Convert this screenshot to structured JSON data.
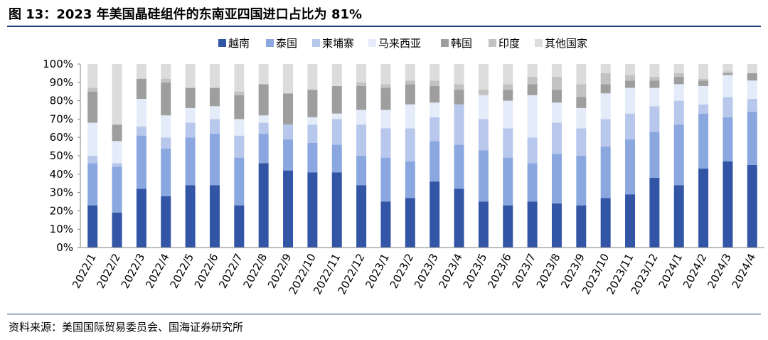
{
  "header": {
    "title": "图 13：2023 年美国晶硅组件的东南亚四国进口占比为 81%"
  },
  "footer": {
    "source": "资料来源：美国国际贸易委员会、国海证券研究所"
  },
  "colors": {
    "rule": "#1f3d7a"
  },
  "chart_data": {
    "type": "bar",
    "stacked": true,
    "title": "",
    "xlabel": "",
    "ylabel": "",
    "ylim": [
      0,
      100
    ],
    "yticks": [
      "0%",
      "10%",
      "20%",
      "30%",
      "40%",
      "50%",
      "60%",
      "70%",
      "80%",
      "90%",
      "100%"
    ],
    "grid": false,
    "legend_position": "top",
    "categories": [
      "2022/1",
      "2022/2",
      "2022/3",
      "2022/4",
      "2022/5",
      "2022/6",
      "2022/7",
      "2022/8",
      "2022/9",
      "2022/10",
      "2022/11",
      "2022/12",
      "2023/1",
      "2023/2",
      "2023/3",
      "2023/4",
      "2023/5",
      "2023/6",
      "2023/7",
      "2023/8",
      "2023/9",
      "2023/10",
      "2023/11",
      "2023/12",
      "2024/1",
      "2024/2",
      "2024/3",
      "2024/4"
    ],
    "series": [
      {
        "name": "越南",
        "color": "#3355a6",
        "values": [
          23,
          19,
          32,
          28,
          34,
          34,
          23,
          46,
          42,
          41,
          41,
          34,
          25,
          27,
          36,
          32,
          25,
          23,
          25,
          24,
          23,
          27,
          29,
          38,
          34,
          43,
          47,
          45
        ]
      },
      {
        "name": "泰国",
        "color": "#8aa7e0",
        "values": [
          23,
          25,
          29,
          26,
          26,
          28,
          26,
          16,
          17,
          16,
          15,
          16,
          24,
          20,
          22,
          24,
          28,
          26,
          21,
          27,
          27,
          28,
          30,
          25,
          33,
          30,
          24,
          29
        ]
      },
      {
        "name": "柬埔寨",
        "color": "#b8c8ec",
        "values": [
          4,
          2,
          5,
          6,
          8,
          8,
          12,
          6,
          8,
          10,
          14,
          17,
          16,
          18,
          13,
          22,
          17,
          16,
          14,
          17,
          15,
          15,
          14,
          14,
          13,
          5,
          11,
          7
        ]
      },
      {
        "name": "马来西亚",
        "color": "#e4ecf9",
        "values": [
          18,
          12,
          15,
          12,
          8,
          7,
          9,
          4,
          0,
          4,
          3,
          8,
          10,
          13,
          8,
          0,
          13,
          15,
          23,
          11,
          11,
          14,
          14,
          10,
          9,
          10,
          12,
          10
        ]
      },
      {
        "name": "韩国",
        "color": "#9e9e9e",
        "values": [
          17,
          9,
          11,
          18,
          11,
          10,
          13,
          17,
          17,
          15,
          15,
          13,
          12,
          11,
          9,
          8,
          0,
          6,
          6,
          7,
          6,
          5,
          4,
          4,
          4,
          3,
          1,
          4
        ]
      },
      {
        "name": "印度",
        "color": "#c2c2c2",
        "values": [
          2,
          0,
          0,
          2,
          0,
          0,
          2,
          0,
          0,
          0,
          0,
          2,
          2,
          2,
          3,
          3,
          3,
          3,
          4,
          7,
          7,
          6,
          3,
          2,
          2,
          1,
          1,
          0
        ]
      },
      {
        "name": "其他国家",
        "color": "#dcdcdc",
        "values": [
          13,
          33,
          8,
          8,
          13,
          13,
          15,
          11,
          16,
          14,
          12,
          10,
          11,
          9,
          9,
          11,
          14,
          11,
          7,
          7,
          11,
          5,
          6,
          7,
          5,
          8,
          4,
          5
        ]
      }
    ]
  }
}
